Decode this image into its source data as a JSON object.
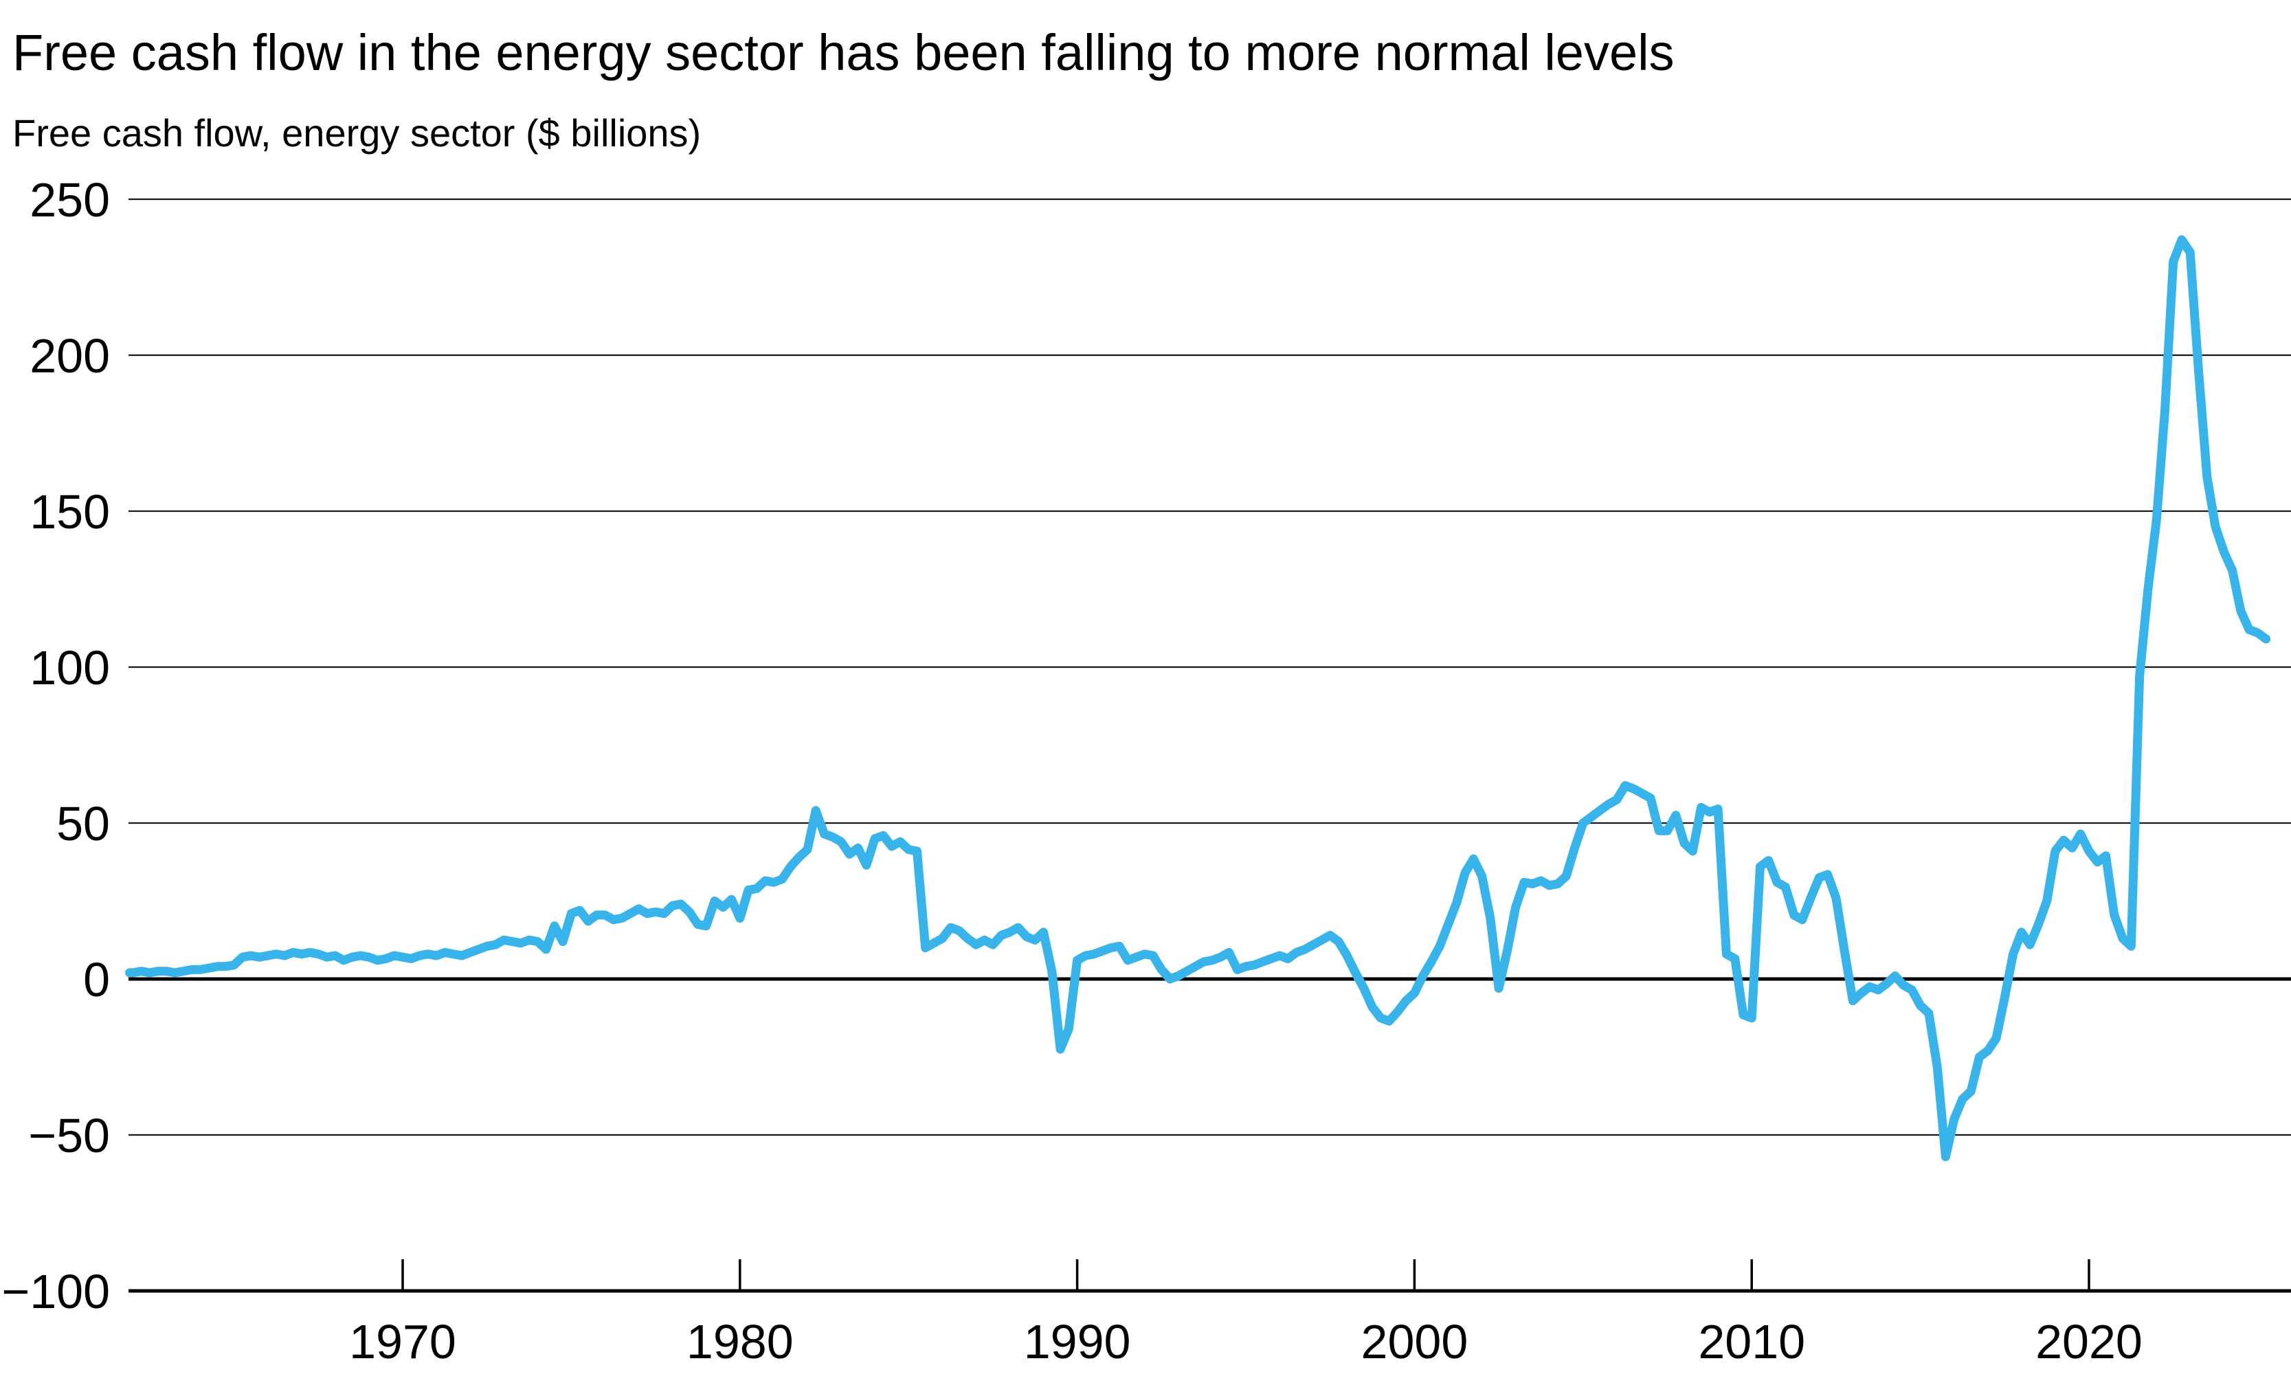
{
  "header": {
    "title": "Free cash flow in the energy sector has been falling to more normal levels",
    "subtitle": "Free cash flow, energy sector ($ billions)"
  },
  "chart_data": {
    "type": "line",
    "title": "Free cash flow in the energy sector has been falling to more normal levels",
    "subtitle": "Free cash flow, energy sector ($ billions)",
    "xlabel": "",
    "ylabel": "Free cash flow ($ billions)",
    "ylim": [
      -100,
      250
    ],
    "xlim": [
      1961.87,
      2026.1
    ],
    "grid": "horizontal",
    "legend": "none",
    "line_color": "#38b4ea",
    "line_width": 13,
    "y_ticks": [
      {
        "label": "250",
        "value": 250
      },
      {
        "label": "200",
        "value": 200
      },
      {
        "label": "150",
        "value": 150
      },
      {
        "label": "100",
        "value": 100
      },
      {
        "label": "50",
        "value": 50
      },
      {
        "label": "0",
        "value": 0
      },
      {
        "label": "−50",
        "value": -50
      },
      {
        "label": "−100",
        "value": -100
      }
    ],
    "x_ticks": [
      {
        "label": "1970",
        "year": 1970
      },
      {
        "label": "1980",
        "year": 1980
      },
      {
        "label": "1990",
        "year": 1990
      },
      {
        "label": "2000",
        "year": 2000
      },
      {
        "label": "2010",
        "year": 2010
      },
      {
        "label": "2020",
        "year": 2020
      }
    ],
    "series": [
      {
        "name": "Free cash flow, energy sector",
        "points": [
          [
            1961.9,
            2
          ],
          [
            1962,
            2
          ],
          [
            1962.25,
            2.5
          ],
          [
            1962.5,
            2
          ],
          [
            1962.75,
            2.5
          ],
          [
            1963,
            2.5
          ],
          [
            1963.25,
            2
          ],
          [
            1963.5,
            2.5
          ],
          [
            1963.75,
            3
          ],
          [
            1964,
            3
          ],
          [
            1964.25,
            3.5
          ],
          [
            1964.5,
            4
          ],
          [
            1964.75,
            4
          ],
          [
            1965,
            4.5
          ],
          [
            1965.25,
            7
          ],
          [
            1965.5,
            7.5
          ],
          [
            1965.75,
            7
          ],
          [
            1966,
            7.5
          ],
          [
            1966.25,
            8
          ],
          [
            1966.5,
            7.5
          ],
          [
            1966.75,
            8.5
          ],
          [
            1967,
            8
          ],
          [
            1967.25,
            8.5
          ],
          [
            1967.5,
            8
          ],
          [
            1967.75,
            7
          ],
          [
            1968,
            7.5
          ],
          [
            1968.25,
            6
          ],
          [
            1968.5,
            7
          ],
          [
            1968.75,
            7.5
          ],
          [
            1969,
            7
          ],
          [
            1969.25,
            6
          ],
          [
            1969.5,
            6.5
          ],
          [
            1969.75,
            7.5
          ],
          [
            1970,
            7
          ],
          [
            1970.25,
            6.5
          ],
          [
            1970.5,
            7.5
          ],
          [
            1970.75,
            8
          ],
          [
            1971,
            7.5
          ],
          [
            1971.25,
            8.5
          ],
          [
            1971.5,
            8
          ],
          [
            1971.75,
            7.5
          ],
          [
            1972,
            8.5
          ],
          [
            1972.25,
            9.5
          ],
          [
            1972.5,
            10.5
          ],
          [
            1972.75,
            11
          ],
          [
            1973,
            12.5
          ],
          [
            1973.25,
            12
          ],
          [
            1973.5,
            11.5
          ],
          [
            1973.75,
            12.5
          ],
          [
            1974,
            12
          ],
          [
            1974.25,
            9.5
          ],
          [
            1974.5,
            17
          ],
          [
            1974.75,
            12
          ],
          [
            1975,
            21
          ],
          [
            1975.25,
            22
          ],
          [
            1975.5,
            18.5
          ],
          [
            1975.75,
            20.5
          ],
          [
            1976,
            20.5
          ],
          [
            1976.25,
            19
          ],
          [
            1976.5,
            19.5
          ],
          [
            1976.75,
            21
          ],
          [
            1977,
            22.5
          ],
          [
            1977.25,
            21
          ],
          [
            1977.5,
            21.5
          ],
          [
            1977.75,
            21
          ],
          [
            1978,
            23.5
          ],
          [
            1978.25,
            24
          ],
          [
            1978.5,
            21.5
          ],
          [
            1978.75,
            17.5
          ],
          [
            1979,
            17
          ],
          [
            1979.25,
            25
          ],
          [
            1979.5,
            23
          ],
          [
            1979.75,
            25.5
          ],
          [
            1980,
            19.5
          ],
          [
            1980.25,
            28.5
          ],
          [
            1980.5,
            29
          ],
          [
            1980.75,
            31.5
          ],
          [
            1981,
            31
          ],
          [
            1981.25,
            32
          ],
          [
            1981.5,
            36
          ],
          [
            1981.75,
            39
          ],
          [
            1982,
            41.5
          ],
          [
            1982.25,
            54
          ],
          [
            1982.5,
            46.5
          ],
          [
            1982.75,
            45.5
          ],
          [
            1983,
            44
          ],
          [
            1983.25,
            40
          ],
          [
            1983.5,
            42
          ],
          [
            1983.75,
            36.5
          ],
          [
            1984,
            45
          ],
          [
            1984.25,
            46
          ],
          [
            1984.5,
            42.5
          ],
          [
            1984.75,
            44
          ],
          [
            1985,
            41.5
          ],
          [
            1985.25,
            41
          ],
          [
            1985.5,
            10
          ],
          [
            1985.75,
            11.5
          ],
          [
            1986,
            13
          ],
          [
            1986.25,
            16.5
          ],
          [
            1986.5,
            15.5
          ],
          [
            1986.75,
            13
          ],
          [
            1987,
            11
          ],
          [
            1987.25,
            12.5
          ],
          [
            1987.5,
            11
          ],
          [
            1987.75,
            14
          ],
          [
            1988,
            15
          ],
          [
            1988.25,
            16.5
          ],
          [
            1988.5,
            13.5
          ],
          [
            1988.75,
            12.5
          ],
          [
            1989,
            15
          ],
          [
            1989.25,
            2.5
          ],
          [
            1989.5,
            -22.5
          ],
          [
            1989.75,
            -16
          ],
          [
            1990,
            6
          ],
          [
            1990.25,
            7.5
          ],
          [
            1990.5,
            8
          ],
          [
            1990.75,
            9
          ],
          [
            1991,
            10
          ],
          [
            1991.25,
            10.5
          ],
          [
            1991.5,
            6
          ],
          [
            1991.75,
            7
          ],
          [
            1992,
            8
          ],
          [
            1992.25,
            7.5
          ],
          [
            1992.5,
            3
          ],
          [
            1992.75,
            0
          ],
          [
            1993,
            1
          ],
          [
            1993.25,
            2.5
          ],
          [
            1993.5,
            4
          ],
          [
            1993.75,
            5.5
          ],
          [
            1994,
            6
          ],
          [
            1994.25,
            7
          ],
          [
            1994.5,
            8.5
          ],
          [
            1994.75,
            3
          ],
          [
            1995,
            4
          ],
          [
            1995.25,
            4.5
          ],
          [
            1995.5,
            5.5
          ],
          [
            1995.75,
            6.5
          ],
          [
            1996,
            7.5
          ],
          [
            1996.25,
            6.5
          ],
          [
            1996.5,
            8.5
          ],
          [
            1996.75,
            9.5
          ],
          [
            1997,
            11
          ],
          [
            1997.25,
            12.5
          ],
          [
            1997.5,
            14
          ],
          [
            1997.75,
            12
          ],
          [
            1998,
            7.5
          ],
          [
            1998.25,
            2
          ],
          [
            1998.5,
            -3
          ],
          [
            1998.75,
            -9
          ],
          [
            1999,
            -12.5
          ],
          [
            1999.25,
            -13.5
          ],
          [
            1999.5,
            -10.5
          ],
          [
            1999.75,
            -7
          ],
          [
            2000,
            -4.5
          ],
          [
            2000.25,
            1
          ],
          [
            2000.5,
            5.5
          ],
          [
            2000.75,
            10.5
          ],
          [
            2001,
            17.5
          ],
          [
            2001.25,
            24.5
          ],
          [
            2001.5,
            34
          ],
          [
            2001.75,
            38.5
          ],
          [
            2002,
            33
          ],
          [
            2002.25,
            19.5
          ],
          [
            2002.5,
            -3
          ],
          [
            2002.75,
            9
          ],
          [
            2003,
            23
          ],
          [
            2003.25,
            31
          ],
          [
            2003.5,
            30.5
          ],
          [
            2003.75,
            31.5
          ],
          [
            2004,
            30
          ],
          [
            2004.25,
            30.5
          ],
          [
            2004.5,
            33
          ],
          [
            2004.75,
            42
          ],
          [
            2005,
            50
          ],
          [
            2005.25,
            52
          ],
          [
            2005.5,
            54
          ],
          [
            2005.75,
            56
          ],
          [
            2006,
            57.5
          ],
          [
            2006.25,
            62
          ],
          [
            2006.5,
            61
          ],
          [
            2006.75,
            59.5
          ],
          [
            2007,
            58
          ],
          [
            2007.25,
            47.5
          ],
          [
            2007.5,
            47.5
          ],
          [
            2007.75,
            52.5
          ],
          [
            2008,
            43.5
          ],
          [
            2008.25,
            41
          ],
          [
            2008.5,
            55
          ],
          [
            2008.75,
            53.5
          ],
          [
            2009,
            54.5
          ],
          [
            2009.25,
            8
          ],
          [
            2009.5,
            6.5
          ],
          [
            2009.75,
            -11.5
          ],
          [
            2010,
            -12.5
          ],
          [
            2010.25,
            36
          ],
          [
            2010.5,
            38
          ],
          [
            2010.75,
            31
          ],
          [
            2011,
            29.5
          ],
          [
            2011.25,
            20.5
          ],
          [
            2011.5,
            19
          ],
          [
            2011.75,
            26
          ],
          [
            2012,
            32.5
          ],
          [
            2012.25,
            33.5
          ],
          [
            2012.5,
            26
          ],
          [
            2012.75,
            9
          ],
          [
            2013,
            -7
          ],
          [
            2013.25,
            -4.5
          ],
          [
            2013.5,
            -2.5
          ],
          [
            2013.75,
            -3.5
          ],
          [
            2014,
            -1.5
          ],
          [
            2014.25,
            1
          ],
          [
            2014.5,
            -2
          ],
          [
            2014.75,
            -3.5
          ],
          [
            2015,
            -8.5
          ],
          [
            2015.25,
            -11
          ],
          [
            2015.5,
            -28
          ],
          [
            2015.75,
            -57
          ],
          [
            2016,
            -45
          ],
          [
            2016.25,
            -38.5
          ],
          [
            2016.5,
            -36
          ],
          [
            2016.75,
            -25
          ],
          [
            2017,
            -23
          ],
          [
            2017.25,
            -19
          ],
          [
            2017.5,
            -6
          ],
          [
            2017.75,
            8
          ],
          [
            2018,
            15
          ],
          [
            2018.25,
            11
          ],
          [
            2018.5,
            17.5
          ],
          [
            2018.75,
            25
          ],
          [
            2019,
            41
          ],
          [
            2019.25,
            44.5
          ],
          [
            2019.5,
            42
          ],
          [
            2019.75,
            46.5
          ],
          [
            2020,
            41
          ],
          [
            2020.25,
            37.5
          ],
          [
            2020.5,
            39.5
          ],
          [
            2020.75,
            20.5
          ],
          [
            2021,
            13
          ],
          [
            2021.25,
            10.5
          ],
          [
            2021.5,
            97
          ],
          [
            2021.75,
            125
          ],
          [
            2022,
            147
          ],
          [
            2022.25,
            182
          ],
          [
            2022.5,
            230
          ],
          [
            2022.75,
            237
          ],
          [
            2023,
            233
          ],
          [
            2023.25,
            195
          ],
          [
            2023.5,
            161
          ],
          [
            2023.75,
            145
          ],
          [
            2024,
            137
          ],
          [
            2024.25,
            131
          ],
          [
            2024.5,
            118
          ],
          [
            2024.75,
            112
          ],
          [
            2025,
            111
          ],
          [
            2025.25,
            109
          ]
        ]
      }
    ]
  }
}
